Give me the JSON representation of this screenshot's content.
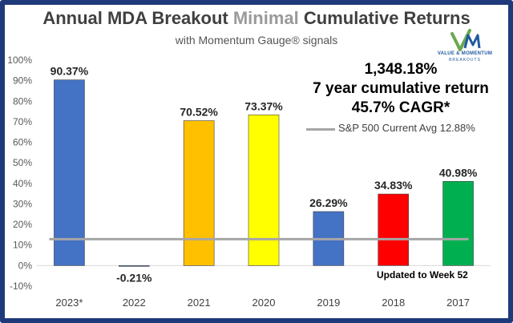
{
  "chart_data": {
    "type": "bar",
    "title_parts": [
      "Annual MDA Breakout ",
      "Minimal",
      " Cumulative Returns"
    ],
    "subtitle": "with Momentum Gauge® signals",
    "categories": [
      "2023*",
      "2022",
      "2021",
      "2020",
      "2019",
      "2018",
      "2017"
    ],
    "values": [
      90.37,
      -0.21,
      70.52,
      73.37,
      26.29,
      34.83,
      40.98
    ],
    "value_labels": [
      "90.37%",
      "-0.21%",
      "70.52%",
      "73.37%",
      "26.29%",
      "34.83%",
      "40.98%"
    ],
    "colors": [
      "#4472c4",
      "#4472c4",
      "#ffc000",
      "#ffff00",
      "#4472c4",
      "#ff0000",
      "#00b050"
    ],
    "ylim": [
      -10,
      100
    ],
    "yticks": [
      -10,
      0,
      10,
      20,
      30,
      40,
      50,
      60,
      70,
      80,
      90,
      100
    ],
    "ytick_labels": [
      "-10%",
      "0%",
      "10%",
      "20%",
      "30%",
      "40%",
      "50%",
      "60%",
      "70%",
      "80%",
      "90%",
      "100%"
    ],
    "reference_line": {
      "name": "S&P 500 Current Avg 12.88%",
      "value": 12.88,
      "color": "#a6a6a6"
    },
    "annotations": [
      "1,348.18%",
      "7 year cumulative return",
      "45.7% CAGR*"
    ],
    "note": "Updated to Week 52",
    "grid": false,
    "legend": "top-right"
  },
  "logo": {
    "line1": "VALUE & MOMENTUM",
    "line2": "BREAKOUTS",
    "icon": "vm-checkmark-logo"
  }
}
